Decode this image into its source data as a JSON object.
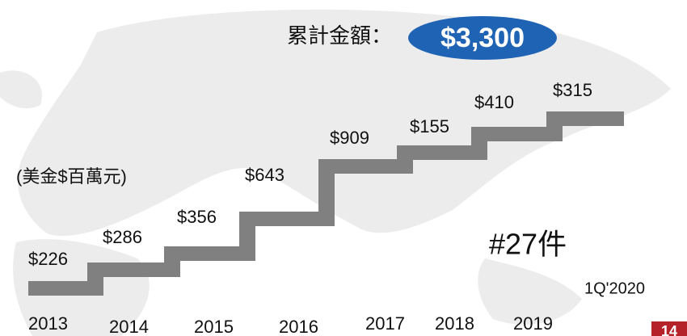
{
  "title": "累計金額：",
  "total": "$3,300",
  "unit": "(美金$百萬元)",
  "amounts": [
    "$226",
    "$286",
    "$356",
    "$643",
    "$909",
    "$155",
    "$410",
    "$315"
  ],
  "years": [
    "2013",
    "2014",
    "2015",
    "2016",
    "2017",
    "2018",
    "2019"
  ],
  "count": "#27件",
  "period": "1Q'2020",
  "page": "14"
}
